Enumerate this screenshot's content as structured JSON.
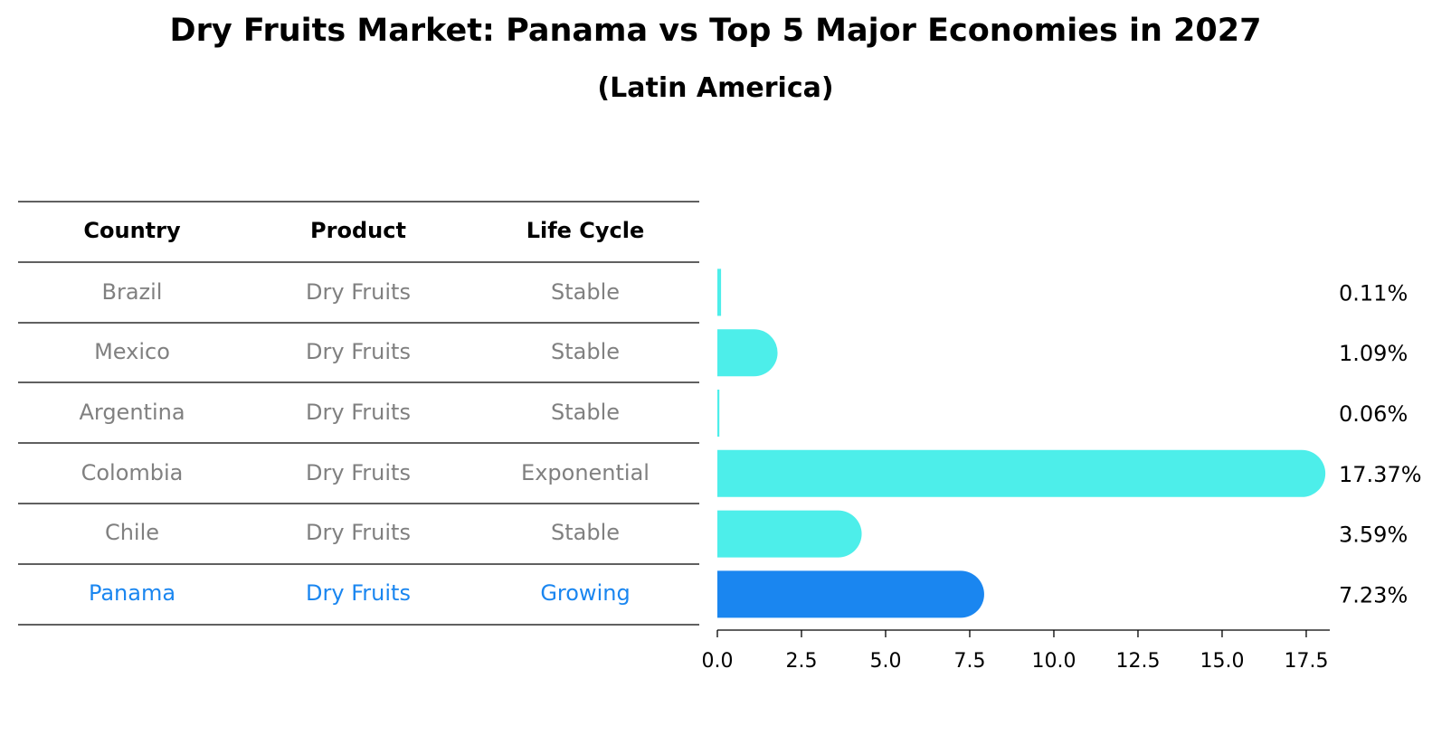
{
  "title": "Dry Fruits Market: Panama vs Top 5 Major Economies in 2027",
  "subtitle": "(Latin America)",
  "table": {
    "headers": [
      "Country",
      "Product",
      "Life Cycle"
    ],
    "rows": [
      {
        "country": "Brazil",
        "product": "Dry Fruits",
        "life_cycle": "Stable"
      },
      {
        "country": "Mexico",
        "product": "Dry Fruits",
        "life_cycle": "Stable"
      },
      {
        "country": "Argentina",
        "product": "Dry Fruits",
        "life_cycle": "Stable"
      },
      {
        "country": "Colombia",
        "product": "Dry Fruits",
        "life_cycle": "Exponential"
      },
      {
        "country": "Chile",
        "product": "Dry Fruits",
        "life_cycle": "Stable"
      },
      {
        "country": "Panama",
        "product": "Dry Fruits",
        "life_cycle": "Growing",
        "highlight": true
      }
    ]
  },
  "chart_data": {
    "type": "bar",
    "orientation": "horizontal",
    "categories": [
      "Brazil",
      "Mexico",
      "Argentina",
      "Colombia",
      "Chile",
      "Panama"
    ],
    "values": [
      0.11,
      1.09,
      0.06,
      17.37,
      3.59,
      7.23
    ],
    "value_labels": [
      "0.11%",
      "1.09%",
      "0.06%",
      "17.37%",
      "3.59%",
      "7.23%"
    ],
    "xlim": [
      0,
      18.2
    ],
    "xticks": [
      0,
      2.5,
      5,
      7.5,
      10,
      12.5,
      15,
      17.5
    ],
    "xtick_labels": [
      "0.0",
      "2.5",
      "5.0",
      "7.5",
      "10.0",
      "12.5",
      "15.0",
      "17.5"
    ],
    "grid": false,
    "colors": {
      "default": "#4deeea",
      "highlight": "#1a86f0"
    },
    "highlight_category": "Panama"
  }
}
